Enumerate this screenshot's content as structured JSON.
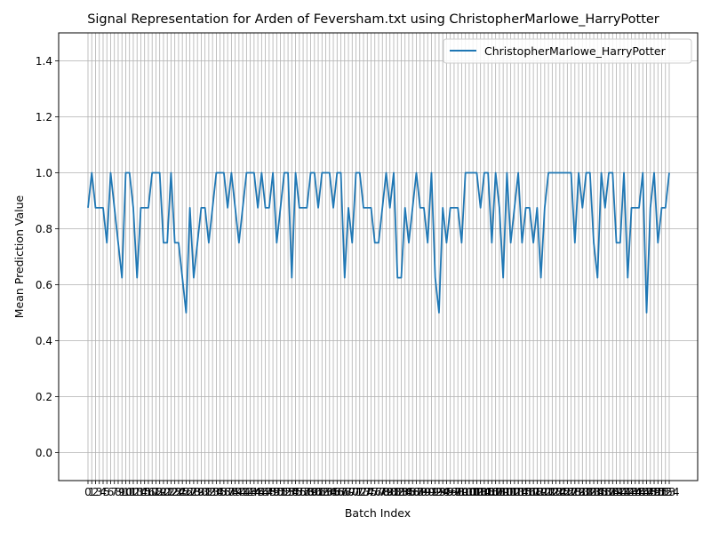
{
  "chart_data": {
    "type": "line",
    "title": "Signal Representation for Arden of Feversham.txt using ChristopherMarlowe_HarryPotter",
    "xlabel": "Batch Index",
    "ylabel": "Mean Prediction Value",
    "ylim": [
      -0.1,
      1.5
    ],
    "yticks": [
      "0.0",
      "0.2",
      "0.4",
      "0.6",
      "0.8",
      "1.0",
      "1.2",
      "1.4"
    ],
    "grid": true,
    "legend_position": "top-right",
    "line_color": "#1f77b4",
    "series": [
      {
        "name": "ChristopherMarlowe_HarryPotter",
        "values": [
          0.875,
          1.0,
          0.875,
          0.875,
          0.875,
          0.75,
          1.0,
          0.875,
          0.75,
          0.625,
          1.0,
          1.0,
          0.875,
          0.625,
          0.875,
          0.875,
          0.875,
          1.0,
          1.0,
          1.0,
          0.75,
          0.75,
          1.0,
          0.75,
          0.75,
          0.625,
          0.5,
          0.875,
          0.625,
          0.75,
          0.875,
          0.875,
          0.75,
          0.875,
          1.0,
          1.0,
          1.0,
          0.875,
          1.0,
          0.875,
          0.75,
          0.875,
          1.0,
          1.0,
          1.0,
          0.875,
          1.0,
          0.875,
          0.875,
          1.0,
          0.75,
          0.875,
          1.0,
          1.0,
          0.625,
          1.0,
          0.875,
          0.875,
          0.875,
          1.0,
          1.0,
          0.875,
          1.0,
          1.0,
          1.0,
          0.875,
          1.0,
          1.0,
          0.625,
          0.875,
          0.75,
          1.0,
          1.0,
          0.875,
          0.875,
          0.875,
          0.75,
          0.75,
          0.875,
          1.0,
          0.875,
          1.0,
          0.625,
          0.625,
          0.875,
          0.75,
          0.875,
          1.0,
          0.875,
          0.875,
          0.75,
          1.0,
          0.625,
          0.5,
          0.875,
          0.75,
          0.875,
          0.875,
          0.875,
          0.75,
          1.0,
          1.0,
          1.0,
          1.0,
          0.875,
          1.0,
          1.0,
          0.75,
          1.0,
          0.875,
          0.625,
          1.0,
          0.75,
          0.875,
          1.0,
          0.75,
          0.875,
          0.875,
          0.75,
          0.875,
          0.625,
          0.875,
          1.0,
          1.0,
          1.0,
          1.0,
          1.0,
          1.0,
          1.0,
          0.75,
          1.0,
          0.875,
          1.0,
          1.0,
          0.75,
          0.625,
          1.0,
          0.875,
          1.0,
          1.0,
          0.75,
          0.75,
          1.0,
          0.625,
          0.875,
          0.875,
          0.875,
          1.0,
          0.5,
          0.875,
          1.0,
          0.75,
          0.875,
          0.875,
          1.0
        ]
      }
    ]
  }
}
